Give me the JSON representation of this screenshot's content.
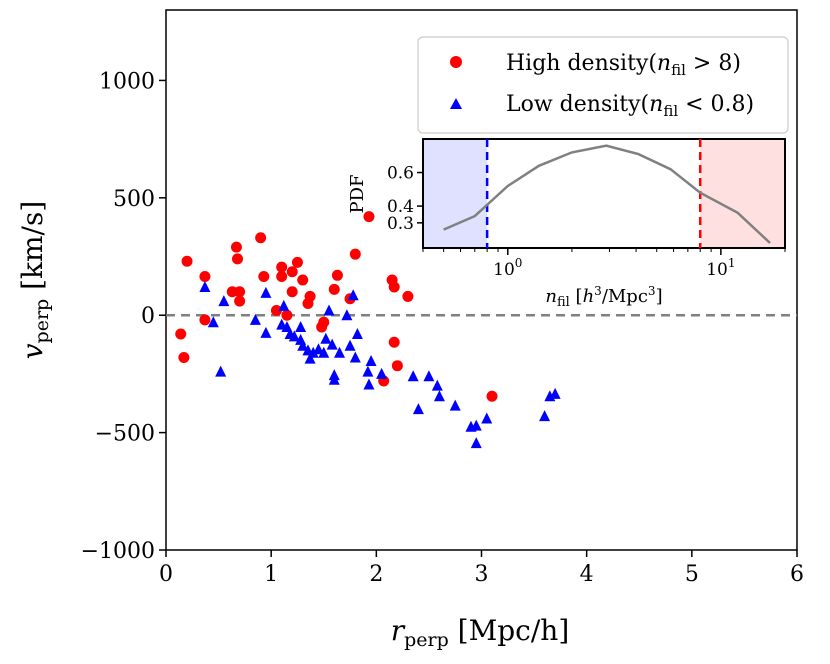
{
  "chart_data": [
    {
      "type": "scatter",
      "xlabel": "r_perp [Mpc/h]",
      "ylabel": "v_perp [km/s]",
      "xlim": [
        0,
        6
      ],
      "ylim": [
        -1000,
        1300
      ],
      "xticks": [
        "0",
        "1",
        "2",
        "3",
        "4",
        "5",
        "6"
      ],
      "yticks": [
        "1000",
        "500",
        "0",
        "−500",
        "−1000"
      ],
      "reference_line": {
        "y": 0,
        "style": "dashed",
        "color": "#808080"
      },
      "legend_position": "top-right",
      "series": [
        {
          "name": "High density(n_fil > 8)",
          "marker": "circle",
          "color": "#ff0000",
          "points": [
            [
              0.14,
              -80
            ],
            [
              0.17,
              -180
            ],
            [
              0.2,
              230
            ],
            [
              0.37,
              165
            ],
            [
              0.37,
              -20
            ],
            [
              0.63,
              100
            ],
            [
              0.67,
              290
            ],
            [
              0.68,
              240
            ],
            [
              0.7,
              100
            ],
            [
              0.7,
              60
            ],
            [
              0.9,
              330
            ],
            [
              0.93,
              165
            ],
            [
              1.05,
              20
            ],
            [
              1.1,
              205
            ],
            [
              1.1,
              165
            ],
            [
              1.15,
              0
            ],
            [
              1.2,
              100
            ],
            [
              1.2,
              185
            ],
            [
              1.25,
              225
            ],
            [
              1.3,
              150
            ],
            [
              1.35,
              50
            ],
            [
              1.37,
              80
            ],
            [
              1.48,
              -50
            ],
            [
              1.5,
              -30
            ],
            [
              1.6,
              110
            ],
            [
              1.63,
              170
            ],
            [
              1.75,
              70
            ],
            [
              1.8,
              260
            ],
            [
              1.93,
              420
            ],
            [
              2.07,
              -280
            ],
            [
              2.15,
              150
            ],
            [
              2.17,
              120
            ],
            [
              2.17,
              -115
            ],
            [
              2.2,
              -215
            ],
            [
              2.3,
              80
            ],
            [
              3.1,
              -345
            ]
          ]
        },
        {
          "name": "Low density(n_fil < 0.8)",
          "marker": "triangle",
          "color": "#0000ff",
          "points": [
            [
              0.37,
              120
            ],
            [
              0.45,
              -30
            ],
            [
              0.52,
              -240
            ],
            [
              0.55,
              60
            ],
            [
              0.85,
              -20
            ],
            [
              0.95,
              95
            ],
            [
              0.95,
              -75
            ],
            [
              1.1,
              -40
            ],
            [
              1.12,
              40
            ],
            [
              1.15,
              -50
            ],
            [
              1.18,
              -80
            ],
            [
              1.22,
              -90
            ],
            [
              1.28,
              -50
            ],
            [
              1.28,
              -105
            ],
            [
              1.3,
              -130
            ],
            [
              1.35,
              -150
            ],
            [
              1.37,
              -185
            ],
            [
              1.4,
              -160
            ],
            [
              1.45,
              -145
            ],
            [
              1.5,
              -160
            ],
            [
              1.52,
              -100
            ],
            [
              1.55,
              20
            ],
            [
              1.58,
              -125
            ],
            [
              1.6,
              -255
            ],
            [
              1.6,
              -275
            ],
            [
              1.65,
              -160
            ],
            [
              1.72,
              0
            ],
            [
              1.75,
              -130
            ],
            [
              1.78,
              85
            ],
            [
              1.8,
              -180
            ],
            [
              1.82,
              -80
            ],
            [
              1.92,
              -240
            ],
            [
              1.93,
              -295
            ],
            [
              1.95,
              -195
            ],
            [
              2.05,
              -250
            ],
            [
              2.35,
              -260
            ],
            [
              2.4,
              -400
            ],
            [
              2.5,
              -260
            ],
            [
              2.58,
              -300
            ],
            [
              2.6,
              -345
            ],
            [
              2.75,
              -385
            ],
            [
              2.9,
              -475
            ],
            [
              2.95,
              -470
            ],
            [
              2.95,
              -545
            ],
            [
              3.05,
              -440
            ],
            [
              3.6,
              -430
            ],
            [
              3.65,
              -345
            ],
            [
              3.7,
              -335
            ]
          ]
        }
      ]
    },
    {
      "type": "line",
      "xscale": "log",
      "xlabel": "n_fil [h^3/Mpc^3]",
      "ylabel": "PDF",
      "xlim": [
        0.4,
        20
      ],
      "ylim": [
        0.15,
        0.8
      ],
      "xticks": [
        "10^0",
        "10^1"
      ],
      "yticks": [
        "0.6",
        "0.4",
        "0.3"
      ],
      "series": [
        {
          "name": "",
          "color": "#808080",
          "x": [
            0.5,
            0.7,
            1.0,
            1.4,
            2.0,
            2.9,
            4.1,
            5.8,
            8.0,
            12.0,
            17.0
          ],
          "y": [
            0.26,
            0.34,
            0.52,
            0.64,
            0.72,
            0.76,
            0.71,
            0.62,
            0.48,
            0.36,
            0.18
          ]
        }
      ],
      "vlines": [
        {
          "x": 0.8,
          "color": "#0000ff",
          "style": "dashed"
        },
        {
          "x": 8.0,
          "color": "#ff0000",
          "style": "dashed"
        }
      ],
      "shaded_regions": [
        {
          "x": [
            0.4,
            0.8
          ],
          "color": "#ccccff"
        },
        {
          "x": [
            8.0,
            20
          ],
          "color": "#ffcccc"
        }
      ]
    }
  ]
}
